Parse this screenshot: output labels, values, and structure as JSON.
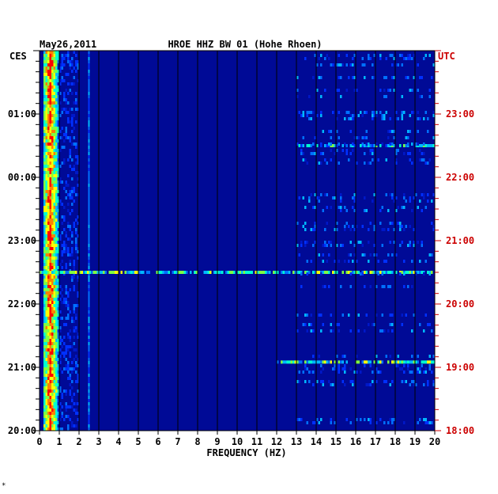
{
  "chart_data": {
    "type": "heatmap",
    "date": "May26,2011",
    "title": "HROE HHZ BW 01 (Hohe Rhoen)",
    "xlabel": "FREQUENCY (HZ)",
    "left_timezone": "CES",
    "right_timezone": "UTC",
    "xlim": [
      0,
      20
    ],
    "x_ticks": [
      "0",
      "1",
      "2",
      "3",
      "4",
      "5",
      "6",
      "7",
      "8",
      "9",
      "10",
      "11",
      "12",
      "13",
      "14",
      "15",
      "16",
      "17",
      "18",
      "19",
      "20"
    ],
    "left_time_ticks": [
      "01:00",
      "00:00",
      "23:00",
      "22:00",
      "21:00",
      "20:00"
    ],
    "right_time_ticks": [
      "23:00",
      "22:00",
      "21:00",
      "20:00",
      "19:00",
      "18:00"
    ],
    "time_span_hours": 6,
    "colors": {
      "background": "#000a96",
      "grid": "#000000",
      "axis_text": "#000000",
      "utc_text": "#cc0000"
    },
    "features": [
      {
        "name": "microseism band",
        "freq_range": [
          0.2,
          0.9
        ],
        "intensity": "high"
      },
      {
        "name": "narrow line",
        "freq": 2.5,
        "intensity": "medium"
      },
      {
        "name": "broadband event",
        "time_utc": "20:30",
        "freq_range": [
          0.0,
          20.0
        ],
        "intensity": "medium"
      },
      {
        "name": "broadband event",
        "time_utc": "19:05",
        "freq_range": [
          12.0,
          20.0
        ],
        "intensity": "medium"
      },
      {
        "name": "broadband event",
        "time_utc": "22:30",
        "freq_range": [
          13.0,
          20.0
        ],
        "intensity": "low"
      }
    ]
  },
  "footer_mark": "*"
}
